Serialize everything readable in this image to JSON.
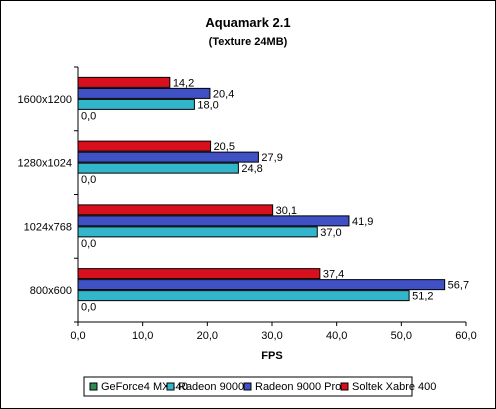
{
  "chart_data": {
    "type": "bar",
    "orientation": "horizontal",
    "title": "Aquamark 2.1",
    "subtitle": "(Texture 24MB)",
    "xlabel": "FPS",
    "ylabel": "",
    "xlim": [
      0,
      60
    ],
    "xticks": [
      "0,0",
      "10,0",
      "20,0",
      "30,0",
      "40,0",
      "50,0",
      "60,0"
    ],
    "grid": false,
    "legend_position": "bottom",
    "categories": [
      "1600x1200",
      "1280x1024",
      "1024x768",
      "800x600"
    ],
    "series": [
      {
        "name": "GeForce4 MX440",
        "color": "#2e8b57",
        "values": [
          0,
          0,
          0,
          0
        ],
        "labels": [
          "0,0",
          "0,0",
          "0,0",
          "0,0"
        ]
      },
      {
        "name": "Radeon 9000",
        "color": "#33b5cc",
        "values": [
          18.0,
          24.8,
          37.0,
          51.2
        ],
        "labels": [
          "18,0",
          "24,8",
          "37,0",
          "51,2"
        ]
      },
      {
        "name": "Radeon 9000 Pro",
        "color": "#3f51c4",
        "values": [
          20.4,
          27.9,
          41.9,
          56.7
        ],
        "labels": [
          "20,4",
          "27,9",
          "41,9",
          "56,7"
        ]
      },
      {
        "name": "Soltek Xabre 400",
        "color": "#d8101e",
        "values": [
          14.2,
          20.5,
          30.1,
          37.4
        ],
        "labels": [
          "14,2",
          "20,5",
          "30,1",
          "37,4"
        ]
      }
    ]
  }
}
